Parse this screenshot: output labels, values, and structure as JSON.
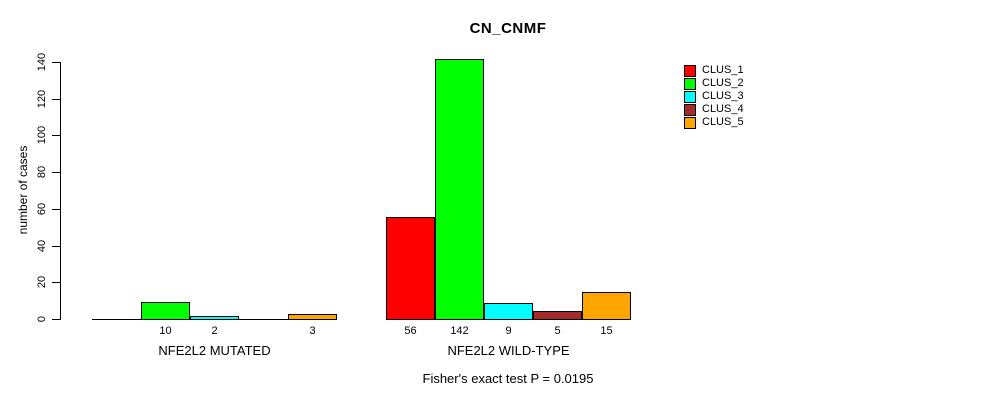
{
  "title": "CN_CNMF",
  "footnote": "Fisher's exact test P = 0.0195",
  "chart_data": {
    "type": "bar",
    "title": "CN_CNMF",
    "xlabel": "",
    "ylabel": "number of cases",
    "ylim": [
      0,
      140
    ],
    "yticks": [
      0,
      20,
      40,
      60,
      80,
      100,
      120,
      140
    ],
    "grid": false,
    "legend_position": "right",
    "groups": [
      {
        "label": "NFE2L2 MUTATED",
        "values": [
          0,
          10,
          2,
          0,
          3
        ]
      },
      {
        "label": "NFE2L2 WILD-TYPE",
        "values": [
          56,
          142,
          9,
          5,
          15
        ]
      }
    ],
    "series": [
      {
        "name": "CLUS_1",
        "color": "#FF0000",
        "values": [
          0,
          56
        ]
      },
      {
        "name": "CLUS_2",
        "color": "#00FF00",
        "values": [
          10,
          142
        ]
      },
      {
        "name": "CLUS_3",
        "color": "#00FFFF",
        "values": [
          2,
          9
        ]
      },
      {
        "name": "CLUS_4",
        "color": "#A52A2A",
        "values": [
          0,
          5
        ]
      },
      {
        "name": "CLUS_5",
        "color": "#FFA500",
        "values": [
          3,
          15
        ]
      }
    ],
    "legend": [
      {
        "label": "CLUS_1",
        "color": "#FF0000"
      },
      {
        "label": "CLUS_2",
        "color": "#00FF00"
      },
      {
        "label": "CLUS_3",
        "color": "#00FFFF"
      },
      {
        "label": "CLUS_4",
        "color": "#A52A2A"
      },
      {
        "label": "CLUS_5",
        "color": "#FFA500"
      }
    ],
    "bar_labels_hide_zero": true,
    "footnote": "Fisher's exact test P = 0.0195"
  }
}
